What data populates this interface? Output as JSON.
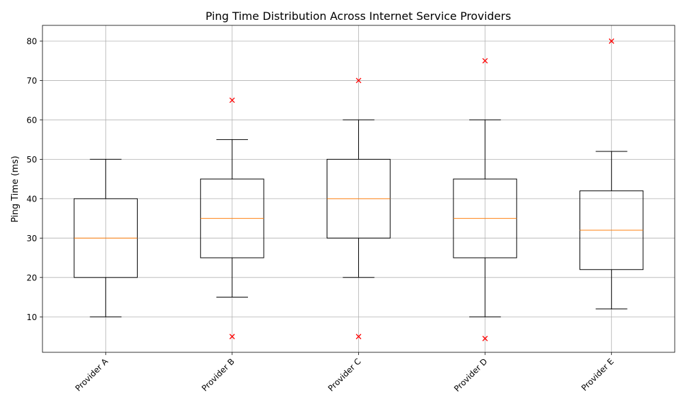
{
  "chart_data": {
    "type": "boxplot",
    "title": "Ping Time Distribution Across Internet Service Providers",
    "xlabel": "",
    "ylabel": "Ping Time (ms)",
    "ylim": [
      1,
      84
    ],
    "y_ticks": [
      10,
      20,
      30,
      40,
      50,
      60,
      70,
      80
    ],
    "grid": true,
    "categories": [
      "Provider A",
      "Provider B",
      "Provider C",
      "Provider D",
      "Provider E"
    ],
    "series": [
      {
        "name": "Provider A",
        "whisker_low": 10,
        "q1": 20,
        "median": 30,
        "q3": 40,
        "whisker_high": 50,
        "outliers": []
      },
      {
        "name": "Provider B",
        "whisker_low": 15,
        "q1": 25,
        "median": 35,
        "q3": 45,
        "whisker_high": 55,
        "outliers": [
          65,
          5
        ]
      },
      {
        "name": "Provider C",
        "whisker_low": 20,
        "q1": 30,
        "median": 40,
        "q3": 50,
        "whisker_high": 60,
        "outliers": [
          70,
          5
        ]
      },
      {
        "name": "Provider D",
        "whisker_low": 10,
        "q1": 25,
        "median": 35,
        "q3": 45,
        "whisker_high": 60,
        "outliers": [
          75,
          4.5
        ]
      },
      {
        "name": "Provider E",
        "whisker_low": 12,
        "q1": 22,
        "median": 32,
        "q3": 42,
        "whisker_high": 52,
        "outliers": [
          80
        ]
      }
    ],
    "colors": {
      "box": "#000000",
      "median": "#ff7f0e",
      "outlier": "#ff0000",
      "grid": "#b0b0b0"
    }
  }
}
